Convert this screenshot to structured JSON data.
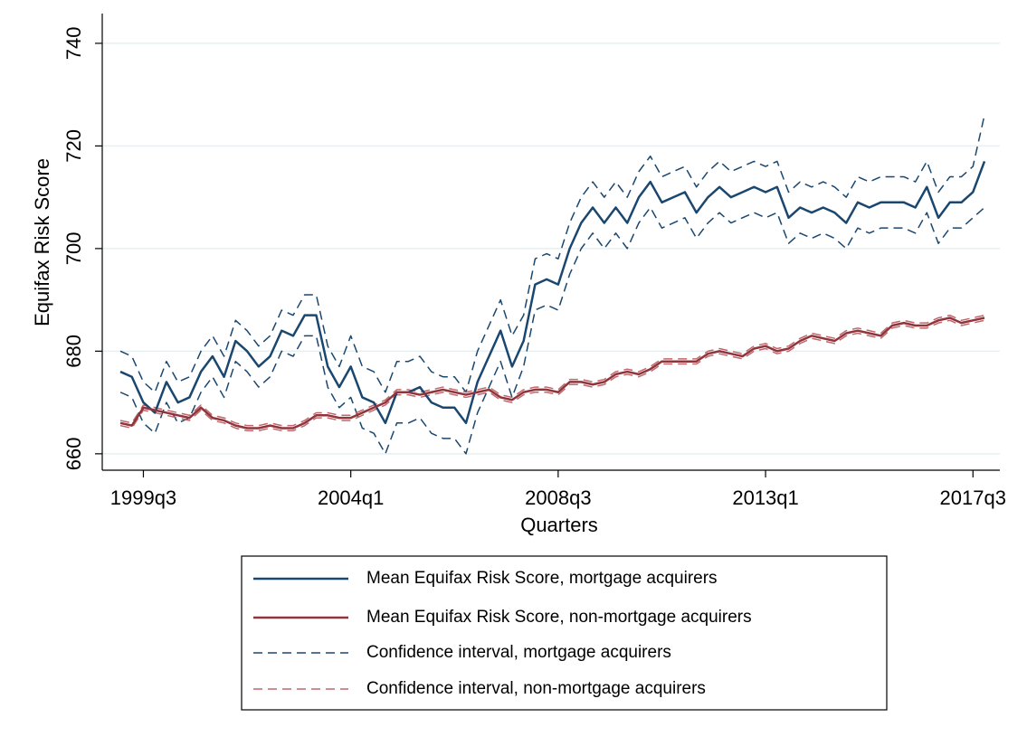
{
  "chart_data": {
    "type": "line",
    "y_label": "Equifax Risk Score",
    "x_label": "Quarters",
    "categories": [
      null,
      null,
      "1999q3",
      null,
      null,
      null,
      null,
      null,
      null,
      null,
      null,
      null,
      null,
      null,
      null,
      null,
      null,
      null,
      null,
      null,
      "2004q1",
      null,
      null,
      null,
      null,
      null,
      null,
      null,
      null,
      null,
      null,
      null,
      null,
      null,
      null,
      null,
      null,
      null,
      "2008q3",
      null,
      null,
      null,
      null,
      null,
      null,
      null,
      null,
      null,
      null,
      null,
      null,
      null,
      null,
      null,
      null,
      null,
      "2013q1",
      null,
      null,
      null,
      null,
      null,
      null,
      null,
      null,
      null,
      null,
      null,
      null,
      null,
      null,
      null,
      null,
      null,
      "2017q3",
      null
    ],
    "ylim": [
      656.8,
      745.8
    ],
    "yticks": [
      660,
      680,
      700,
      720,
      740
    ],
    "grid": true,
    "series": [
      {
        "name": "Mean Equifax Risk Score, mortgage acquirers",
        "color": "#1a476f",
        "values": [
          676,
          675,
          670,
          668,
          674,
          670,
          671,
          676,
          679,
          675,
          682,
          680,
          677,
          679,
          684,
          683,
          687,
          687,
          677,
          673,
          677,
          671,
          670,
          666,
          672,
          672,
          673,
          670,
          669,
          669,
          666,
          674,
          679,
          684,
          677,
          682,
          693,
          694,
          693,
          700,
          705,
          708,
          705,
          708,
          705,
          710,
          713,
          709,
          710,
          711,
          707,
          710,
          712,
          710,
          711,
          712,
          711,
          712,
          706,
          708,
          707,
          708,
          707,
          705,
          709,
          708,
          709,
          709,
          709,
          708,
          712,
          706,
          709,
          709,
          711,
          717
        ]
      },
      {
        "name": "Mean Equifax Risk Score, non-mortgage acquirers",
        "color": "#90353b",
        "values": [
          666,
          665.5,
          669,
          668.5,
          668,
          667.5,
          667,
          669,
          667,
          666.5,
          665.5,
          665,
          665,
          665.5,
          665,
          665,
          666,
          667.5,
          667.5,
          667,
          667,
          668,
          669,
          670,
          672,
          672,
          671.5,
          672,
          672.5,
          672,
          671.5,
          672,
          672.5,
          671,
          670.5,
          672,
          672.5,
          672.5,
          672,
          674,
          674,
          673.5,
          674,
          675.5,
          676,
          675.5,
          676.5,
          678,
          678,
          678,
          678,
          679.5,
          680,
          679.5,
          679,
          680.5,
          681,
          680,
          680.5,
          682,
          683,
          682.5,
          682,
          683.5,
          684,
          683.5,
          683,
          685,
          685.5,
          685,
          685,
          686,
          686.5,
          685.5,
          686,
          686.5
        ]
      },
      {
        "name": "Confidence interval, mortgage acquirers",
        "color": "#1a476f",
        "dashed": true,
        "upper": [
          680,
          679,
          674,
          672,
          678,
          674,
          675,
          680,
          683,
          679,
          686,
          684,
          681,
          683,
          688,
          687,
          691,
          691,
          681,
          677,
          683,
          677,
          676,
          672,
          678,
          678,
          679,
          676,
          675,
          675,
          672,
          680,
          685,
          690,
          683,
          687,
          698,
          699,
          698,
          705,
          710,
          713,
          710,
          713,
          710,
          715,
          718,
          714,
          715,
          716,
          712,
          715,
          717,
          715,
          716,
          717,
          716,
          717,
          711,
          713,
          712,
          713,
          712,
          710,
          714,
          713,
          714,
          714,
          714,
          713,
          717,
          711,
          714,
          714,
          716,
          726
        ],
        "lower": [
          672,
          671,
          666,
          664,
          670,
          666,
          667,
          672,
          675,
          671,
          678,
          676,
          673,
          675,
          680,
          679,
          683,
          683,
          673,
          669,
          671,
          665,
          664,
          660,
          666,
          666,
          667,
          664,
          663,
          663,
          660,
          668,
          673,
          678,
          671,
          677,
          688,
          689,
          688,
          695,
          700,
          703,
          700,
          703,
          700,
          705,
          708,
          704,
          705,
          706,
          702,
          705,
          707,
          705,
          706,
          707,
          706,
          707,
          701,
          703,
          702,
          703,
          702,
          700,
          704,
          703,
          704,
          704,
          704,
          703,
          707,
          701,
          704,
          704,
          706,
          708
        ]
      },
      {
        "name": "Confidence interval, non-mortgage acquirers",
        "color": "#c0676d",
        "dashed": true,
        "upper": [
          666.5,
          666,
          669.5,
          669,
          668.5,
          668,
          667.5,
          669.5,
          667.5,
          667,
          666,
          665.5,
          665.5,
          666,
          665.5,
          665.5,
          666.5,
          668,
          668,
          667.5,
          667.5,
          668.5,
          669.5,
          670.5,
          672.5,
          672.5,
          672,
          672.5,
          673,
          672.5,
          672,
          672.5,
          673,
          671.5,
          671,
          672.5,
          673,
          673,
          672.5,
          674.5,
          674.5,
          674,
          674.5,
          676,
          676.5,
          676,
          677,
          678.5,
          678.5,
          678.5,
          678.5,
          680,
          680.5,
          680,
          679.5,
          681,
          681.5,
          680.5,
          681,
          682.5,
          683.5,
          683,
          682.5,
          684,
          684.5,
          684,
          683.5,
          685.5,
          686,
          685.5,
          685.5,
          686.5,
          687,
          686,
          686.5,
          687
        ],
        "lower": [
          665.5,
          665,
          668.5,
          668,
          667.5,
          667,
          666.5,
          668.5,
          666.5,
          666,
          665,
          664.5,
          664.5,
          665,
          664.5,
          664.5,
          665.5,
          667,
          667,
          666.5,
          666.5,
          667.5,
          668.5,
          669.5,
          671.5,
          671.5,
          671,
          671.5,
          672,
          671.5,
          671,
          671.5,
          672,
          670.5,
          670,
          671.5,
          672,
          672,
          671.5,
          673.5,
          673.5,
          673,
          673.5,
          675,
          675.5,
          675,
          676,
          677.5,
          677.5,
          677.5,
          677.5,
          679,
          679.5,
          679,
          678.5,
          680,
          680.5,
          679.5,
          680,
          681.5,
          682.5,
          682,
          681.5,
          683,
          683.5,
          683,
          682.5,
          684.5,
          685,
          684.5,
          684.5,
          685.5,
          686,
          685,
          685.5,
          686
        ]
      }
    ]
  }
}
